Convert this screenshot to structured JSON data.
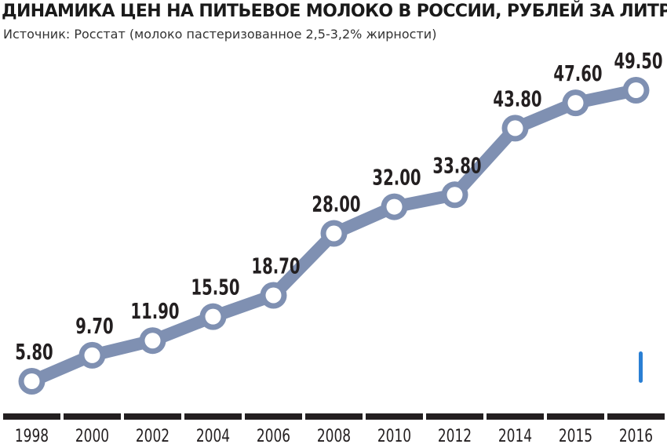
{
  "chart_data": {
    "type": "line",
    "title": "ДИНАМИКА ЦЕН НА ПИТЬЕВОЕ МОЛОКО В РОССИИ, РУБЛЕЙ ЗА ЛИТР",
    "subtitle": "Источник: Росстат (молоко пастеризованное 2,5-3,2% жирности)",
    "categories": [
      "1998",
      "2000",
      "2002",
      "2004",
      "2006",
      "2008",
      "2010",
      "2012",
      "2014",
      "2015",
      "2016"
    ],
    "values": [
      5.8,
      9.7,
      11.9,
      15.5,
      18.7,
      28.0,
      32.0,
      33.8,
      43.8,
      47.6,
      49.5
    ],
    "value_labels": [
      "5.80",
      "9.70",
      "11.90",
      "15.50",
      "18.70",
      "28.00",
      "32.00",
      "33.80",
      "43.80",
      "47.60",
      "49.50"
    ],
    "xlabel": "",
    "ylabel": "",
    "ylim": [
      5.8,
      49.5
    ],
    "grid": false,
    "legend": "none",
    "colors": {
      "line": "#7f90b2",
      "marker_fill": "#ffffff",
      "axis_bar": "#231f20",
      "label_text": "#231f20",
      "accent_mark": "#2a7fd4"
    }
  }
}
